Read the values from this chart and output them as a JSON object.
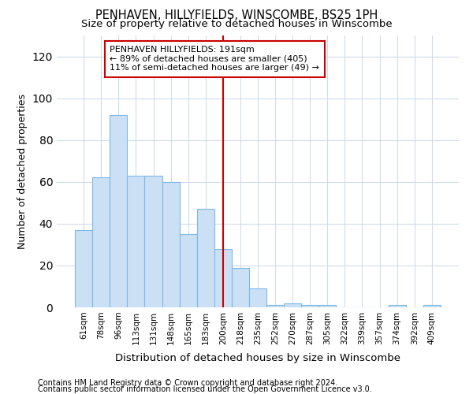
{
  "title": "PENHAVEN, HILLYFIELDS, WINSCOMBE, BS25 1PH",
  "subtitle": "Size of property relative to detached houses in Winscombe",
  "xlabel": "Distribution of detached houses by size in Winscombe",
  "ylabel": "Number of detached properties",
  "bar_color": "#cce0f5",
  "bar_edge_color": "#7bb8e8",
  "background_color": "#ffffff",
  "vline_color": "#cc0000",
  "vline_bin_index": 8,
  "annotation_text": "PENHAVEN HILLYFIELDS: 191sqm\n← 89% of detached houses are smaller (405)\n11% of semi-detached houses are larger (49) →",
  "annotation_box_color": "#ffffff",
  "annotation_box_edge_color": "#cc0000",
  "bins": [
    "61sqm",
    "78sqm",
    "96sqm",
    "113sqm",
    "131sqm",
    "148sqm",
    "165sqm",
    "183sqm",
    "200sqm",
    "218sqm",
    "235sqm",
    "252sqm",
    "270sqm",
    "287sqm",
    "305sqm",
    "322sqm",
    "339sqm",
    "357sqm",
    "374sqm",
    "392sqm",
    "409sqm"
  ],
  "values": [
    37,
    62,
    92,
    63,
    63,
    60,
    35,
    47,
    28,
    19,
    9,
    1,
    2,
    1,
    1,
    0,
    0,
    0,
    1,
    0,
    1
  ],
  "ylim": [
    0,
    130
  ],
  "yticks": [
    0,
    20,
    40,
    60,
    80,
    100,
    120
  ],
  "footer1": "Contains HM Land Registry data © Crown copyright and database right 2024.",
  "footer2": "Contains public sector information licensed under the Open Government Licence v3.0."
}
